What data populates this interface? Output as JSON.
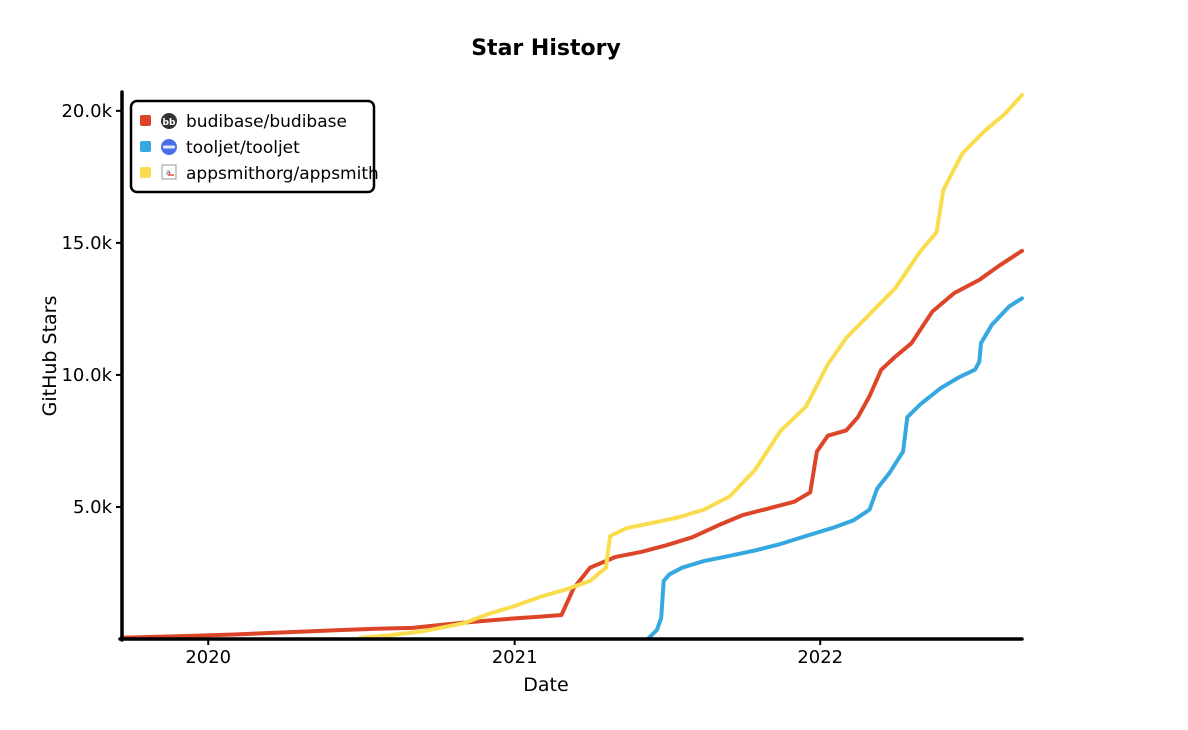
{
  "chart_data": {
    "type": "line",
    "title": "Star History",
    "xlabel": "Date",
    "ylabel": "GitHub Stars",
    "x_ticks": [
      "2020",
      "2021",
      "2022"
    ],
    "y_ticks": [
      "5.0k",
      "10.0k",
      "15.0k",
      "20.0k"
    ],
    "y_tick_values": [
      5000,
      10000,
      15000,
      20000
    ],
    "x_range": [
      "2019-09-20",
      "2022-08-30"
    ],
    "y_range": [
      0,
      20600
    ],
    "grid": false,
    "legend_position": "top-left",
    "series": [
      {
        "name": "budibase/budibase",
        "color": "#dd4528",
        "icon": "budibase-logo-icon",
        "points": [
          [
            "2019-09-20",
            50
          ],
          [
            "2019-12-01",
            110
          ],
          [
            "2020-02-01",
            170
          ],
          [
            "2020-04-01",
            250
          ],
          [
            "2020-06-01",
            330
          ],
          [
            "2020-07-20",
            390
          ],
          [
            "2020-09-01",
            420
          ],
          [
            "2020-10-01",
            520
          ],
          [
            "2020-11-01",
            620
          ],
          [
            "2020-12-01",
            700
          ],
          [
            "2021-01-01",
            780
          ],
          [
            "2021-02-01",
            850
          ],
          [
            "2021-02-26",
            910
          ],
          [
            "2021-03-12",
            1900
          ],
          [
            "2021-04-01",
            2700
          ],
          [
            "2021-05-01",
            3100
          ],
          [
            "2021-06-01",
            3300
          ],
          [
            "2021-07-01",
            3550
          ],
          [
            "2021-08-01",
            3850
          ],
          [
            "2021-09-01",
            4300
          ],
          [
            "2021-10-01",
            4700
          ],
          [
            "2021-11-01",
            4950
          ],
          [
            "2021-12-01",
            5200
          ],
          [
            "2021-12-20",
            5550
          ],
          [
            "2021-12-28",
            7100
          ],
          [
            "2022-01-10",
            7700
          ],
          [
            "2022-02-01",
            7900
          ],
          [
            "2022-02-15",
            8400
          ],
          [
            "2022-03-01",
            9200
          ],
          [
            "2022-03-15",
            10200
          ],
          [
            "2022-04-01",
            10700
          ],
          [
            "2022-04-20",
            11200
          ],
          [
            "2022-05-15",
            12400
          ],
          [
            "2022-06-10",
            13100
          ],
          [
            "2022-07-10",
            13600
          ],
          [
            "2022-08-01",
            14100
          ],
          [
            "2022-08-30",
            14700
          ]
        ]
      },
      {
        "name": "tooljet/tooljet",
        "color": "#36a8e0",
        "icon": "tooljet-logo-icon",
        "points": [
          [
            "2021-06-10",
            30
          ],
          [
            "2021-06-20",
            350
          ],
          [
            "2021-06-25",
            800
          ],
          [
            "2021-06-28",
            2200
          ],
          [
            "2021-07-05",
            2450
          ],
          [
            "2021-07-20",
            2700
          ],
          [
            "2021-08-15",
            2950
          ],
          [
            "2021-09-15",
            3150
          ],
          [
            "2021-10-15",
            3350
          ],
          [
            "2021-11-15",
            3600
          ],
          [
            "2021-12-15",
            3900
          ],
          [
            "2022-01-15",
            4200
          ],
          [
            "2022-02-10",
            4500
          ],
          [
            "2022-03-01",
            4900
          ],
          [
            "2022-03-10",
            5700
          ],
          [
            "2022-03-25",
            6300
          ],
          [
            "2022-04-10",
            7100
          ],
          [
            "2022-04-15",
            8400
          ],
          [
            "2022-05-01",
            8900
          ],
          [
            "2022-05-25",
            9500
          ],
          [
            "2022-06-15",
            9900
          ],
          [
            "2022-07-05",
            10200
          ],
          [
            "2022-07-10",
            10500
          ],
          [
            "2022-07-12",
            11200
          ],
          [
            "2022-07-25",
            11900
          ],
          [
            "2022-08-15",
            12600
          ],
          [
            "2022-08-30",
            12900
          ]
        ]
      },
      {
        "name": "appsmithorg/appsmith",
        "color": "#f9dd4e",
        "icon": "appsmith-logo-icon",
        "points": [
          [
            "2020-07-01",
            50
          ],
          [
            "2020-08-01",
            130
          ],
          [
            "2020-09-15",
            300
          ],
          [
            "2020-11-01",
            600
          ],
          [
            "2020-12-01",
            950
          ],
          [
            "2021-01-01",
            1250
          ],
          [
            "2021-02-01",
            1600
          ],
          [
            "2021-03-01",
            1850
          ],
          [
            "2021-04-01",
            2200
          ],
          [
            "2021-04-20",
            2700
          ],
          [
            "2021-04-25",
            3900
          ],
          [
            "2021-05-15",
            4200
          ],
          [
            "2021-06-15",
            4400
          ],
          [
            "2021-07-15",
            4600
          ],
          [
            "2021-08-15",
            4900
          ],
          [
            "2021-09-15",
            5400
          ],
          [
            "2021-10-15",
            6400
          ],
          [
            "2021-11-15",
            7900
          ],
          [
            "2021-12-15",
            8800
          ],
          [
            "2022-01-10",
            10400
          ],
          [
            "2022-02-01",
            11400
          ],
          [
            "2022-03-01",
            12300
          ],
          [
            "2022-04-01",
            13300
          ],
          [
            "2022-05-01",
            14700
          ],
          [
            "2022-05-20",
            15400
          ],
          [
            "2022-05-28",
            17000
          ],
          [
            "2022-06-20",
            18400
          ],
          [
            "2022-07-15",
            19200
          ],
          [
            "2022-08-10",
            19900
          ],
          [
            "2022-08-30",
            20600
          ]
        ]
      }
    ]
  }
}
